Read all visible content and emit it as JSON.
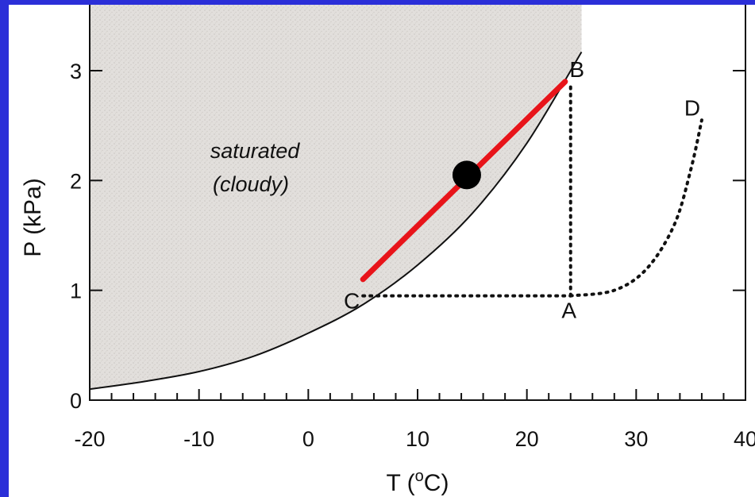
{
  "chart_data": {
    "type": "line",
    "xlabel": "T (",
    "xlabel_sup": "o",
    "xlabel_end": "C)",
    "ylabel": "P (kPa)",
    "xlim": [
      -20,
      40
    ],
    "ylim": [
      0,
      3.6
    ],
    "xticks": [
      -20,
      -10,
      0,
      10,
      20,
      30,
      40
    ],
    "yticks": [
      0,
      1,
      2,
      3
    ],
    "xtick_labels": [
      "-20",
      "-10",
      "0",
      "10",
      "20",
      "30",
      "40"
    ],
    "ytick_labels": [
      "0",
      "1",
      "2",
      "3"
    ],
    "grid": false,
    "region_label_line1": "saturated",
    "region_label_line2": "(cloudy)",
    "saturation_curve": {
      "x": [
        -20,
        -15,
        -10,
        -5,
        0,
        5,
        10,
        15,
        20,
        25
      ],
      "y": [
        0.1,
        0.17,
        0.26,
        0.4,
        0.61,
        0.87,
        1.23,
        1.7,
        2.34,
        3.17
      ]
    },
    "points": [
      {
        "label": "A",
        "x": 24,
        "y": 0.95
      },
      {
        "label": "B",
        "x": 24,
        "y": 2.9
      },
      {
        "label": "C",
        "x": 5,
        "y": 0.95
      },
      {
        "label": "D",
        "x": 36,
        "y": 2.55
      }
    ],
    "dotted_paths": [
      {
        "x": [
          24,
          24
        ],
        "y": [
          0.95,
          2.9
        ]
      },
      {
        "x": [
          5,
          24
        ],
        "y": [
          0.95,
          0.95
        ]
      },
      {
        "x": [
          24,
          28,
          31,
          33.5,
          35,
          36
        ],
        "y": [
          0.95,
          1.0,
          1.2,
          1.6,
          2.1,
          2.55
        ]
      }
    ],
    "red_line": {
      "x": [
        5,
        23.5
      ],
      "y": [
        1.1,
        2.9
      ]
    },
    "marker": {
      "x": 14.5,
      "y": 2.05
    },
    "colors": {
      "red_line": "#e8141a",
      "marker": "#000000",
      "shade": "#d6d3d0",
      "border": "#2b2fd8"
    }
  }
}
